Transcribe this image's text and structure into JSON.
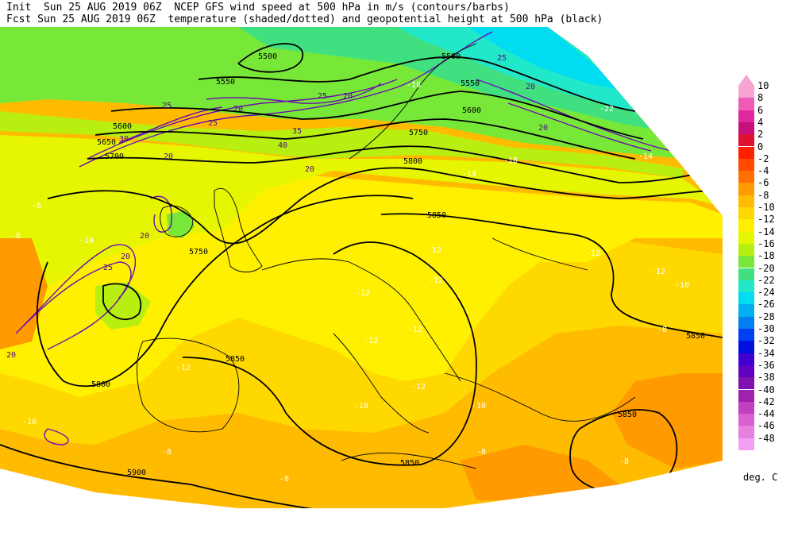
{
  "header": {
    "line1": "Init  Sun 25 AUG 2019 06Z  NCEP GFS wind speed at 500 hPa in m/s (contours/barbs)",
    "line2": "Fcst Sun 25 AUG 2019 06Z  temperature (shaded/dotted) and geopotential height at 500 hPa (black)"
  },
  "colorbar": {
    "levels": [
      {
        "label": "10",
        "color": "#f6a5d2"
      },
      {
        "label": "8",
        "color": "#ee5cb8"
      },
      {
        "label": "6",
        "color": "#e0289d"
      },
      {
        "label": "4",
        "color": "#c8107a"
      },
      {
        "label": "2",
        "color": "#e01030"
      },
      {
        "label": "0",
        "color": "#ff2000"
      },
      {
        "label": "-2",
        "color": "#ff4a00"
      },
      {
        "label": "-4",
        "color": "#ff7000"
      },
      {
        "label": "-6",
        "color": "#ff9a00"
      },
      {
        "label": "-8",
        "color": "#ffbb00"
      },
      {
        "label": "-10",
        "color": "#ffd800"
      },
      {
        "label": "-12",
        "color": "#fff000"
      },
      {
        "label": "-14",
        "color": "#e6f500"
      },
      {
        "label": "-16",
        "color": "#b8ef10"
      },
      {
        "label": "-18",
        "color": "#78e838"
      },
      {
        "label": "-20",
        "color": "#40e080"
      },
      {
        "label": "-22",
        "color": "#20e8c8"
      },
      {
        "label": "-24",
        "color": "#00dcf0"
      },
      {
        "label": "-26",
        "color": "#00b0f0"
      },
      {
        "label": "-28",
        "color": "#0080f0"
      },
      {
        "label": "-30",
        "color": "#0040f0"
      },
      {
        "label": "-32",
        "color": "#0010e0"
      },
      {
        "label": "-34",
        "color": "#4000d0"
      },
      {
        "label": "-36",
        "color": "#6000c0"
      },
      {
        "label": "-38",
        "color": "#8010b0"
      },
      {
        "label": "-40",
        "color": "#a020b0"
      },
      {
        "label": "-42",
        "color": "#c040c0"
      },
      {
        "label": "-44",
        "color": "#d860d0"
      },
      {
        "label": "-46",
        "color": "#e880e0"
      },
      {
        "label": "-48",
        "color": "#f4a0f0"
      }
    ],
    "units": "deg. C"
  },
  "height_labels": [
    "5500",
    "5550",
    "5600",
    "5650",
    "5700",
    "5750",
    "5800",
    "5850",
    "5900"
  ],
  "temp_labels": [
    "-22",
    "-20",
    "-18",
    "-16",
    "-14",
    "-12",
    "-10",
    "-8"
  ],
  "wind_labels": [
    "20",
    "25",
    "30",
    "35",
    "40"
  ]
}
